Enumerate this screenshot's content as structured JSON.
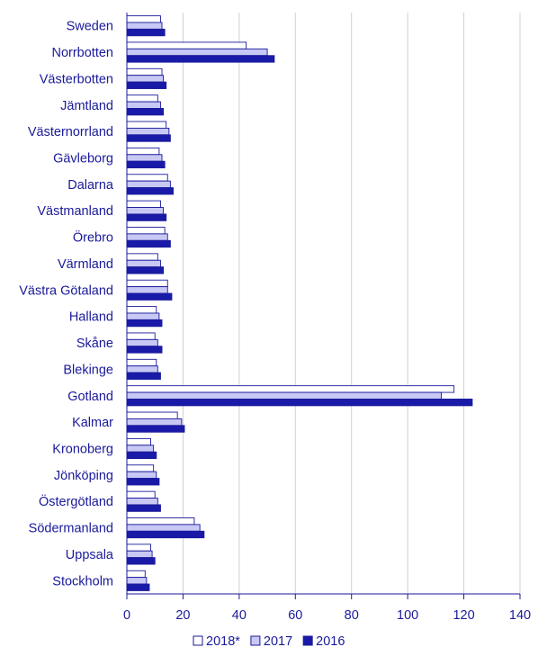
{
  "chart_data": {
    "type": "bar",
    "orientation": "horizontal",
    "title": "",
    "xlabel": "",
    "ylabel": "",
    "xlim": [
      0,
      140
    ],
    "xticks": [
      0,
      20,
      40,
      60,
      80,
      100,
      120,
      140
    ],
    "grid": "vertical",
    "legend_position": "bottom",
    "categories": [
      "Sweden",
      "Norrbotten",
      "Västerbotten",
      "Jämtland",
      "Västernorrland",
      "Gävleborg",
      "Dalarna",
      "Västmanland",
      "Örebro",
      "Värmland",
      "Västra Götaland",
      "Halland",
      "Skåne",
      "Blekinge",
      "Gotland",
      "Kalmar",
      "Kronoberg",
      "Jönköping",
      "Östergötland",
      "Södermanland",
      "Uppsala",
      "Stockholm"
    ],
    "series": [
      {
        "name": "2018*",
        "color": "#ffffff",
        "values": [
          12,
          42.5,
          12.5,
          11,
          14,
          11.5,
          14.5,
          12,
          13.5,
          11,
          14.5,
          10.5,
          10,
          10.5,
          116.5,
          18,
          8.5,
          9.5,
          10,
          24,
          8.5,
          6.5
        ]
      },
      {
        "name": "2017",
        "color": "#c8c8f5",
        "values": [
          12.5,
          50,
          13,
          12,
          15,
          12.5,
          15.5,
          13,
          14.5,
          12,
          14.5,
          11.5,
          11,
          11,
          112,
          19.5,
          9.5,
          10.5,
          11,
          26,
          9,
          7
        ]
      },
      {
        "name": "2016",
        "color": "#1a1aa8",
        "values": [
          13.5,
          52.5,
          14,
          13,
          15.5,
          13.5,
          16.5,
          14,
          15.5,
          13,
          16,
          12.5,
          12.5,
          12,
          123,
          20.5,
          10.5,
          11.5,
          12,
          27.5,
          10,
          8
        ]
      }
    ],
    "colors": {
      "text": "#1a1a9a",
      "grid": "#d0d0d0",
      "outline": "#1a1a9a"
    }
  }
}
